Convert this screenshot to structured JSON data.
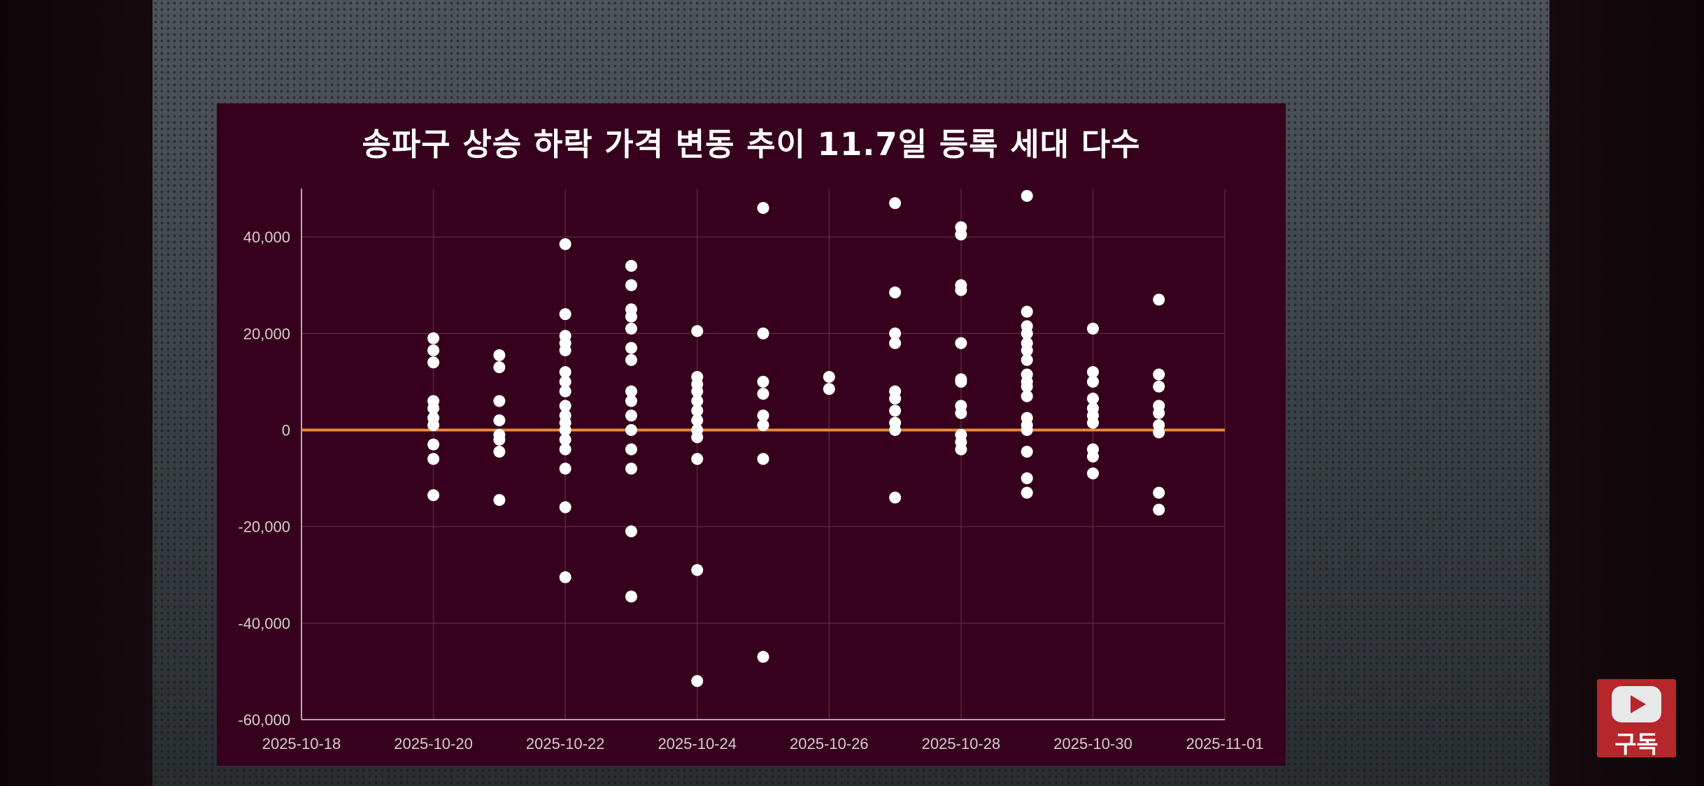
{
  "chart_data": {
    "type": "scatter",
    "title": "송파구 상승 하락 가격 변동 추이 11.7일 등록 세대 다수",
    "xlabel": "",
    "ylabel": "",
    "x_ticks": [
      "2025-10-18",
      "2025-10-20",
      "2025-10-22",
      "2025-10-24",
      "2025-10-26",
      "2025-10-28",
      "2025-10-30",
      "2025-11-01"
    ],
    "y_ticks": [
      "40,000",
      "20,000",
      "0",
      "-20,000",
      "-40,000",
      "-60,000"
    ],
    "xlim": [
      "2025-10-18",
      "2025-11-01"
    ],
    "ylim": [
      -60000,
      50000
    ],
    "grid": true,
    "baseline": {
      "value": 0,
      "color": "#e8893a"
    },
    "colors": {
      "background": "#36001c",
      "marker": "#ffffff"
    },
    "series": [
      {
        "points": [
          {
            "x": "2025-10-20",
            "y": 19000
          },
          {
            "x": "2025-10-20",
            "y": 16500
          },
          {
            "x": "2025-10-20",
            "y": 14000
          },
          {
            "x": "2025-10-20",
            "y": 6000
          },
          {
            "x": "2025-10-20",
            "y": 4500
          },
          {
            "x": "2025-10-20",
            "y": 2500
          },
          {
            "x": "2025-10-20",
            "y": 1000
          },
          {
            "x": "2025-10-20",
            "y": -3000
          },
          {
            "x": "2025-10-20",
            "y": -6000
          },
          {
            "x": "2025-10-20",
            "y": -13500
          },
          {
            "x": "2025-10-21",
            "y": 15500
          },
          {
            "x": "2025-10-21",
            "y": 13000
          },
          {
            "x": "2025-10-21",
            "y": 6000
          },
          {
            "x": "2025-10-21",
            "y": 2000
          },
          {
            "x": "2025-10-21",
            "y": -1000
          },
          {
            "x": "2025-10-21",
            "y": -2000
          },
          {
            "x": "2025-10-21",
            "y": -4500
          },
          {
            "x": "2025-10-21",
            "y": -14500
          },
          {
            "x": "2025-10-22",
            "y": 38500
          },
          {
            "x": "2025-10-22",
            "y": 24000
          },
          {
            "x": "2025-10-22",
            "y": 19500
          },
          {
            "x": "2025-10-22",
            "y": 18000
          },
          {
            "x": "2025-10-22",
            "y": 16500
          },
          {
            "x": "2025-10-22",
            "y": 12000
          },
          {
            "x": "2025-10-22",
            "y": 10000
          },
          {
            "x": "2025-10-22",
            "y": 8000
          },
          {
            "x": "2025-10-22",
            "y": 5000
          },
          {
            "x": "2025-10-22",
            "y": 3000
          },
          {
            "x": "2025-10-22",
            "y": 1500
          },
          {
            "x": "2025-10-22",
            "y": 0
          },
          {
            "x": "2025-10-22",
            "y": -2000
          },
          {
            "x": "2025-10-22",
            "y": -4000
          },
          {
            "x": "2025-10-22",
            "y": -8000
          },
          {
            "x": "2025-10-22",
            "y": -16000
          },
          {
            "x": "2025-10-22",
            "y": -30500
          },
          {
            "x": "2025-10-23",
            "y": 34000
          },
          {
            "x": "2025-10-23",
            "y": 30000
          },
          {
            "x": "2025-10-23",
            "y": 25000
          },
          {
            "x": "2025-10-23",
            "y": 23500
          },
          {
            "x": "2025-10-23",
            "y": 21000
          },
          {
            "x": "2025-10-23",
            "y": 17000
          },
          {
            "x": "2025-10-23",
            "y": 14500
          },
          {
            "x": "2025-10-23",
            "y": 8000
          },
          {
            "x": "2025-10-23",
            "y": 6000
          },
          {
            "x": "2025-10-23",
            "y": 3000
          },
          {
            "x": "2025-10-23",
            "y": 0
          },
          {
            "x": "2025-10-23",
            "y": -4000
          },
          {
            "x": "2025-10-23",
            "y": -8000
          },
          {
            "x": "2025-10-23",
            "y": -21000
          },
          {
            "x": "2025-10-23",
            "y": -34500
          },
          {
            "x": "2025-10-24",
            "y": 20500
          },
          {
            "x": "2025-10-24",
            "y": 11000
          },
          {
            "x": "2025-10-24",
            "y": 9500
          },
          {
            "x": "2025-10-24",
            "y": 8000
          },
          {
            "x": "2025-10-24",
            "y": 6000
          },
          {
            "x": "2025-10-24",
            "y": 4000
          },
          {
            "x": "2025-10-24",
            "y": 2000
          },
          {
            "x": "2025-10-24",
            "y": 0
          },
          {
            "x": "2025-10-24",
            "y": -1500
          },
          {
            "x": "2025-10-24",
            "y": -6000
          },
          {
            "x": "2025-10-24",
            "y": -29000
          },
          {
            "x": "2025-10-24",
            "y": -52000
          },
          {
            "x": "2025-10-25",
            "y": 46000
          },
          {
            "x": "2025-10-25",
            "y": 20000
          },
          {
            "x": "2025-10-25",
            "y": 10000
          },
          {
            "x": "2025-10-25",
            "y": 7500
          },
          {
            "x": "2025-10-25",
            "y": 3000
          },
          {
            "x": "2025-10-25",
            "y": 1000
          },
          {
            "x": "2025-10-25",
            "y": -6000
          },
          {
            "x": "2025-10-25",
            "y": -47000
          },
          {
            "x": "2025-10-26",
            "y": 11000
          },
          {
            "x": "2025-10-26",
            "y": 8500
          },
          {
            "x": "2025-10-27",
            "y": 47000
          },
          {
            "x": "2025-10-27",
            "y": 28500
          },
          {
            "x": "2025-10-27",
            "y": 20000
          },
          {
            "x": "2025-10-27",
            "y": 18000
          },
          {
            "x": "2025-10-27",
            "y": 8000
          },
          {
            "x": "2025-10-27",
            "y": 6500
          },
          {
            "x": "2025-10-27",
            "y": 4000
          },
          {
            "x": "2025-10-27",
            "y": 1500
          },
          {
            "x": "2025-10-27",
            "y": 0
          },
          {
            "x": "2025-10-27",
            "y": -14000
          },
          {
            "x": "2025-10-28",
            "y": 42000
          },
          {
            "x": "2025-10-28",
            "y": 40500
          },
          {
            "x": "2025-10-28",
            "y": 30000
          },
          {
            "x": "2025-10-28",
            "y": 29000
          },
          {
            "x": "2025-10-28",
            "y": 18000
          },
          {
            "x": "2025-10-28",
            "y": 10500
          },
          {
            "x": "2025-10-28",
            "y": 10000
          },
          {
            "x": "2025-10-28",
            "y": 5000
          },
          {
            "x": "2025-10-28",
            "y": 3500
          },
          {
            "x": "2025-10-28",
            "y": -1000
          },
          {
            "x": "2025-10-28",
            "y": -2500
          },
          {
            "x": "2025-10-28",
            "y": -4000
          },
          {
            "x": "2025-10-29",
            "y": 48500
          },
          {
            "x": "2025-10-29",
            "y": 24500
          },
          {
            "x": "2025-10-29",
            "y": 21500
          },
          {
            "x": "2025-10-29",
            "y": 20000
          },
          {
            "x": "2025-10-29",
            "y": 18000
          },
          {
            "x": "2025-10-29",
            "y": 16500
          },
          {
            "x": "2025-10-29",
            "y": 14500
          },
          {
            "x": "2025-10-29",
            "y": 11500
          },
          {
            "x": "2025-10-29",
            "y": 10000
          },
          {
            "x": "2025-10-29",
            "y": 9000
          },
          {
            "x": "2025-10-29",
            "y": 7000
          },
          {
            "x": "2025-10-29",
            "y": 2500
          },
          {
            "x": "2025-10-29",
            "y": 1000
          },
          {
            "x": "2025-10-29",
            "y": 0
          },
          {
            "x": "2025-10-29",
            "y": -4500
          },
          {
            "x": "2025-10-29",
            "y": -10000
          },
          {
            "x": "2025-10-29",
            "y": -13000
          },
          {
            "x": "2025-10-30",
            "y": 21000
          },
          {
            "x": "2025-10-30",
            "y": 12000
          },
          {
            "x": "2025-10-30",
            "y": 10000
          },
          {
            "x": "2025-10-30",
            "y": 6500
          },
          {
            "x": "2025-10-30",
            "y": 4500
          },
          {
            "x": "2025-10-30",
            "y": 3000
          },
          {
            "x": "2025-10-30",
            "y": 1500
          },
          {
            "x": "2025-10-30",
            "y": -4000
          },
          {
            "x": "2025-10-30",
            "y": -5500
          },
          {
            "x": "2025-10-30",
            "y": -9000
          },
          {
            "x": "2025-10-31",
            "y": 27000
          },
          {
            "x": "2025-10-31",
            "y": 11500
          },
          {
            "x": "2025-10-31",
            "y": 9000
          },
          {
            "x": "2025-10-31",
            "y": 5000
          },
          {
            "x": "2025-10-31",
            "y": 3500
          },
          {
            "x": "2025-10-31",
            "y": 1000
          },
          {
            "x": "2025-10-31",
            "y": -500
          },
          {
            "x": "2025-10-31",
            "y": -13000
          },
          {
            "x": "2025-10-31",
            "y": -16500
          }
        ]
      }
    ]
  },
  "overlay": {
    "subscribe_label": "구독",
    "subscribe_icon": "youtube-play-icon",
    "subscribe_color": "#b7262b"
  }
}
